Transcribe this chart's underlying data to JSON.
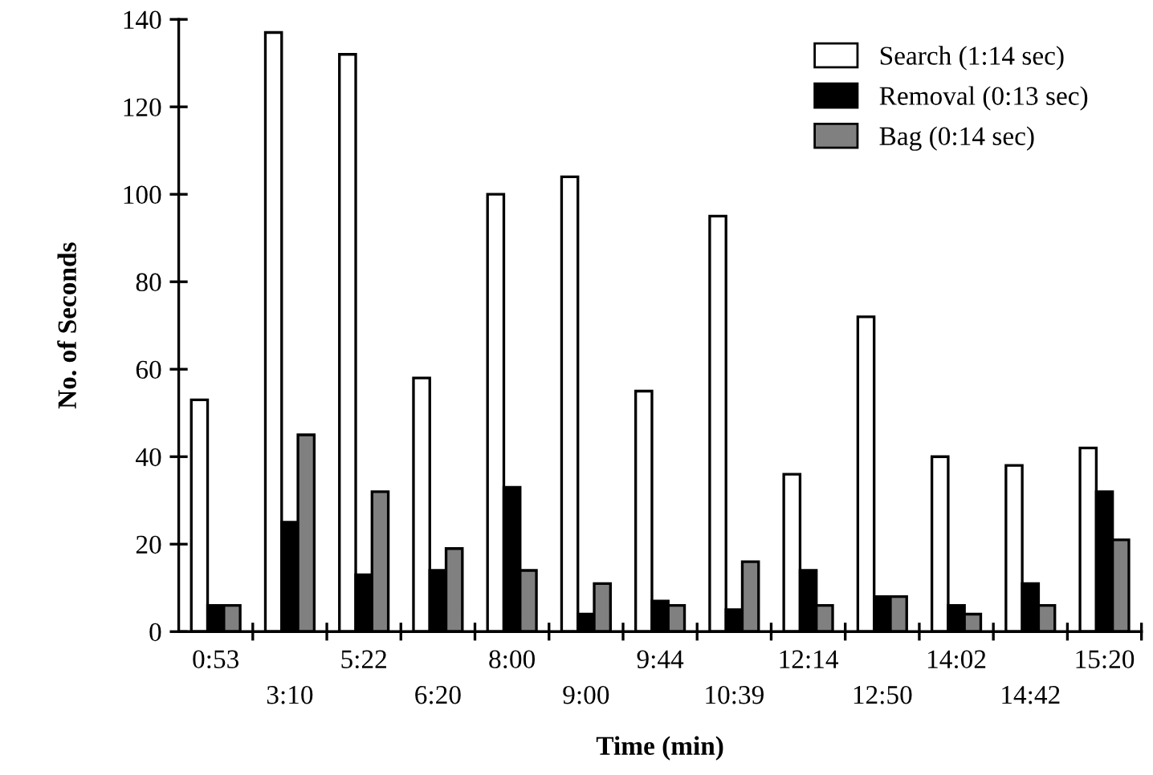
{
  "chart_data": {
    "type": "bar",
    "xlabel": "Time (min)",
    "ylabel": "No. of Seconds",
    "categories": [
      "0:53",
      "3:10",
      "5:22",
      "6:20",
      "8:00",
      "9:00",
      "9:44",
      "10:39",
      "12:14",
      "12:50",
      "14:02",
      "14:42",
      "15:20"
    ],
    "series": [
      {
        "name": "Search (1:14 sec)",
        "color": "#ffffff",
        "values": [
          53,
          137,
          132,
          58,
          100,
          104,
          55,
          95,
          36,
          72,
          40,
          38,
          42
        ]
      },
      {
        "name": "Removal (0:13 sec)",
        "color": "#000000",
        "values": [
          6,
          25,
          13,
          14,
          33,
          4,
          7,
          5,
          14,
          8,
          6,
          11,
          32
        ]
      },
      {
        "name": "Bag (0:14 sec)",
        "color": "#808080",
        "values": [
          6,
          45,
          32,
          19,
          14,
          11,
          6,
          16,
          6,
          8,
          4,
          6,
          21
        ]
      }
    ],
    "ylim": [
      0,
      140
    ],
    "yticks": [
      0,
      20,
      40,
      60,
      80,
      100,
      120,
      140
    ],
    "grid": false,
    "legend": "top right"
  }
}
